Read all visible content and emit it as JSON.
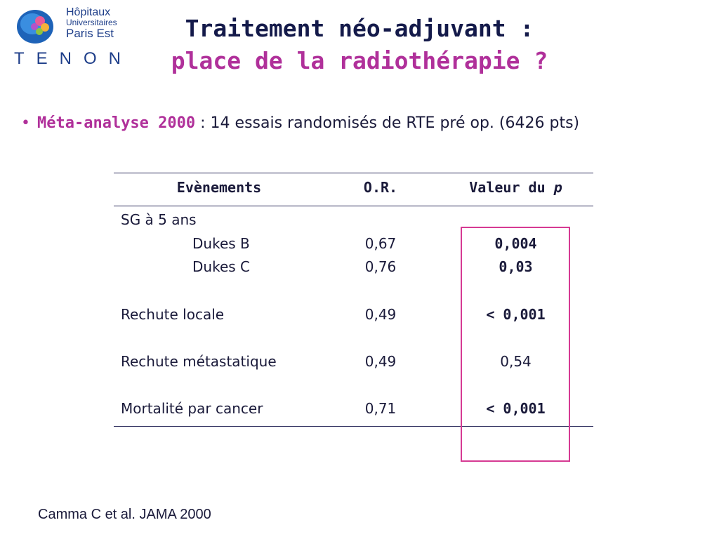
{
  "logo": {
    "line1": "Hôpitaux",
    "line2": "Universitaires",
    "line3": "Paris Est",
    "tenon": "TENON"
  },
  "title": {
    "line1": "Traitement néo-adjuvant :",
    "line2": "place de la radiothérapie ?"
  },
  "bullet": {
    "mark": "•",
    "highlight": "Méta-analyse 2000",
    "text": " : 14 essais randomisés de RTE pré op. (6426 pts)"
  },
  "table": {
    "headers": {
      "events": "Evènements",
      "or": "O.R.",
      "p_prefix": "Valeur du ",
      "p_italic": "p"
    },
    "rows": [
      {
        "label": "SG à 5 ans",
        "or": "",
        "p": ""
      },
      {
        "label": "Dukes B",
        "or": "0,67",
        "p": "0,004"
      },
      {
        "label": "Dukes C",
        "or": "0,76",
        "p": "0,03"
      },
      {
        "label": "Rechute locale",
        "or": "0,49",
        "p": "< 0,001"
      },
      {
        "label": "Rechute métastatique",
        "or": "0,49",
        "p": "0,54"
      },
      {
        "label": "Mortalité par cancer",
        "or": "0,71",
        "p": "< 0,001"
      }
    ]
  },
  "reference": "Camma C et al. JAMA  2000",
  "colors": {
    "accent": "#b0309a",
    "box": "#d63a93",
    "text": "#1a1a3a"
  }
}
